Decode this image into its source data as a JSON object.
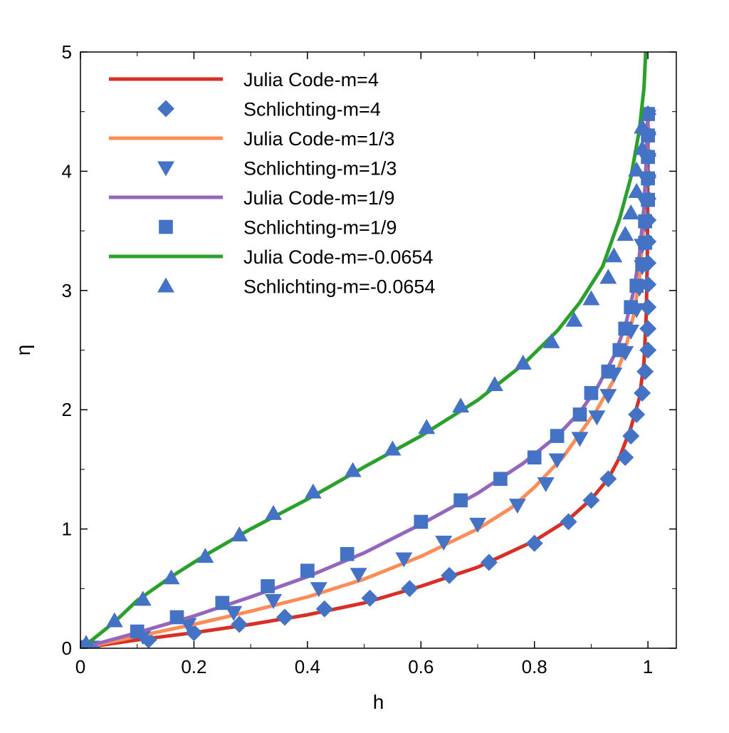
{
  "chart_data": {
    "type": "line",
    "title": "",
    "xlabel": "h",
    "ylabel": "η",
    "xlim": [
      0,
      1.05
    ],
    "ylim": [
      0,
      5
    ],
    "x_ticks": [
      0,
      0.2,
      0.4,
      0.6,
      0.8,
      1
    ],
    "x_tick_labels": [
      "0",
      "0.2",
      "0.4",
      "0.6",
      "0.8",
      "1"
    ],
    "y_ticks": [
      0,
      1,
      2,
      3,
      4,
      5
    ],
    "y_tick_labels": [
      "0",
      "1",
      "2",
      "3",
      "4",
      "5"
    ],
    "grid": false,
    "legend_position": "top-left",
    "series": [
      {
        "name": "Julia Code-m=4",
        "kind": "line",
        "color": "#d73027",
        "points": [
          [
            0,
            0
          ],
          [
            0.1,
            0.07
          ],
          [
            0.2,
            0.13
          ],
          [
            0.3,
            0.2
          ],
          [
            0.4,
            0.28
          ],
          [
            0.5,
            0.38
          ],
          [
            0.6,
            0.52
          ],
          [
            0.7,
            0.68
          ],
          [
            0.8,
            0.9
          ],
          [
            0.86,
            1.08
          ],
          [
            0.9,
            1.25
          ],
          [
            0.93,
            1.42
          ],
          [
            0.95,
            1.6
          ],
          [
            0.97,
            1.85
          ],
          [
            0.985,
            2.1
          ],
          [
            0.993,
            2.4
          ],
          [
            0.997,
            2.8
          ],
          [
            0.999,
            3.3
          ],
          [
            1.0,
            4.0
          ],
          [
            1.0,
            4.5
          ]
        ]
      },
      {
        "name": "Schlichting-m=4",
        "kind": "marker",
        "marker": "diamond",
        "color": "#4472c4",
        "points": [
          [
            0.02,
            0.01
          ],
          [
            0.12,
            0.07
          ],
          [
            0.2,
            0.13
          ],
          [
            0.28,
            0.2
          ],
          [
            0.36,
            0.26
          ],
          [
            0.43,
            0.33
          ],
          [
            0.51,
            0.42
          ],
          [
            0.58,
            0.5
          ],
          [
            0.65,
            0.61
          ],
          [
            0.72,
            0.72
          ],
          [
            0.8,
            0.88
          ],
          [
            0.86,
            1.06
          ],
          [
            0.9,
            1.24
          ],
          [
            0.93,
            1.42
          ],
          [
            0.96,
            1.6
          ],
          [
            0.97,
            1.78
          ],
          [
            0.98,
            1.96
          ],
          [
            0.99,
            2.14
          ],
          [
            0.995,
            2.32
          ],
          [
            1.0,
            2.5
          ],
          [
            1.0,
            2.68
          ],
          [
            1.0,
            2.86
          ],
          [
            1.0,
            3.05
          ],
          [
            1.0,
            3.23
          ],
          [
            1.0,
            3.41
          ],
          [
            1.0,
            3.59
          ],
          [
            1.0,
            3.77
          ],
          [
            1.0,
            3.95
          ],
          [
            1.0,
            4.13
          ],
          [
            1.0,
            4.31
          ],
          [
            1.0,
            4.48
          ]
        ]
      },
      {
        "name": "Julia Code-m=1/3",
        "kind": "line",
        "color": "#fc8d59",
        "points": [
          [
            0,
            0
          ],
          [
            0.1,
            0.1
          ],
          [
            0.2,
            0.2
          ],
          [
            0.3,
            0.31
          ],
          [
            0.4,
            0.43
          ],
          [
            0.5,
            0.58
          ],
          [
            0.6,
            0.77
          ],
          [
            0.7,
            1.0
          ],
          [
            0.76,
            1.18
          ],
          [
            0.8,
            1.35
          ],
          [
            0.85,
            1.6
          ],
          [
            0.88,
            1.8
          ],
          [
            0.91,
            2.0
          ],
          [
            0.94,
            2.25
          ],
          [
            0.96,
            2.5
          ],
          [
            0.975,
            2.8
          ],
          [
            0.985,
            3.1
          ],
          [
            0.992,
            3.5
          ],
          [
            0.997,
            4.0
          ],
          [
            1.0,
            4.5
          ]
        ]
      },
      {
        "name": "Schlichting-m=1/3",
        "kind": "marker",
        "marker": "triangle-down",
        "color": "#4472c4",
        "points": [
          [
            0.02,
            0.01
          ],
          [
            0.11,
            0.1
          ],
          [
            0.19,
            0.2
          ],
          [
            0.27,
            0.3
          ],
          [
            0.34,
            0.4
          ],
          [
            0.42,
            0.5
          ],
          [
            0.49,
            0.62
          ],
          [
            0.57,
            0.75
          ],
          [
            0.64,
            0.89
          ],
          [
            0.7,
            1.04
          ],
          [
            0.77,
            1.2
          ],
          [
            0.82,
            1.38
          ],
          [
            0.84,
            1.58
          ],
          [
            0.88,
            1.76
          ],
          [
            0.91,
            1.94
          ],
          [
            0.93,
            2.12
          ],
          [
            0.94,
            2.3
          ],
          [
            0.96,
            2.48
          ],
          [
            0.97,
            2.66
          ],
          [
            0.98,
            2.84
          ],
          [
            0.985,
            3.02
          ],
          [
            0.99,
            3.2
          ],
          [
            0.99,
            3.38
          ],
          [
            0.995,
            3.56
          ],
          [
            0.995,
            3.74
          ],
          [
            1.0,
            3.92
          ],
          [
            1.0,
            4.1
          ],
          [
            1.0,
            4.28
          ],
          [
            1.0,
            4.46
          ]
        ]
      },
      {
        "name": "Julia Code-m=1/9",
        "kind": "line",
        "color": "#9467bd",
        "points": [
          [
            0,
            0
          ],
          [
            0.1,
            0.13
          ],
          [
            0.2,
            0.27
          ],
          [
            0.3,
            0.43
          ],
          [
            0.4,
            0.6
          ],
          [
            0.5,
            0.8
          ],
          [
            0.6,
            1.04
          ],
          [
            0.7,
            1.3
          ],
          [
            0.78,
            1.55
          ],
          [
            0.84,
            1.78
          ],
          [
            0.88,
            1.98
          ],
          [
            0.91,
            2.18
          ],
          [
            0.94,
            2.45
          ],
          [
            0.96,
            2.7
          ],
          [
            0.975,
            3.0
          ],
          [
            0.985,
            3.3
          ],
          [
            0.993,
            3.7
          ],
          [
            0.997,
            4.1
          ],
          [
            1.0,
            4.5
          ]
        ]
      },
      {
        "name": "Schlichting-m=1/9",
        "kind": "marker",
        "marker": "square",
        "color": "#4472c4",
        "points": [
          [
            0.01,
            0.01
          ],
          [
            0.1,
            0.14
          ],
          [
            0.17,
            0.26
          ],
          [
            0.25,
            0.38
          ],
          [
            0.33,
            0.52
          ],
          [
            0.4,
            0.65
          ],
          [
            0.47,
            0.79
          ],
          [
            0.6,
            1.06
          ],
          [
            0.67,
            1.24
          ],
          [
            0.74,
            1.42
          ],
          [
            0.8,
            1.6
          ],
          [
            0.84,
            1.78
          ],
          [
            0.88,
            1.96
          ],
          [
            0.9,
            2.14
          ],
          [
            0.93,
            2.32
          ],
          [
            0.95,
            2.5
          ],
          [
            0.96,
            2.68
          ],
          [
            0.97,
            2.86
          ],
          [
            0.98,
            3.04
          ],
          [
            0.99,
            3.22
          ],
          [
            0.995,
            3.4
          ],
          [
            0.995,
            3.58
          ],
          [
            1.0,
            3.76
          ],
          [
            1.0,
            3.94
          ],
          [
            1.0,
            4.12
          ],
          [
            1.0,
            4.3
          ],
          [
            1.0,
            4.48
          ]
        ]
      },
      {
        "name": "Julia Code-m=-0.0654",
        "kind": "line",
        "color": "#2ca02c",
        "points": [
          [
            0.01,
            0.03
          ],
          [
            0.06,
            0.22
          ],
          [
            0.1,
            0.4
          ],
          [
            0.16,
            0.6
          ],
          [
            0.22,
            0.78
          ],
          [
            0.3,
            1.0
          ],
          [
            0.4,
            1.25
          ],
          [
            0.5,
            1.52
          ],
          [
            0.6,
            1.78
          ],
          [
            0.7,
            2.08
          ],
          [
            0.78,
            2.38
          ],
          [
            0.84,
            2.66
          ],
          [
            0.88,
            2.9
          ],
          [
            0.92,
            3.2
          ],
          [
            0.95,
            3.6
          ],
          [
            0.97,
            3.95
          ],
          [
            0.985,
            4.35
          ],
          [
            0.993,
            4.7
          ],
          [
            0.996,
            5.0
          ]
        ]
      },
      {
        "name": "Schlichting-m=-0.0654",
        "kind": "marker",
        "marker": "triangle-up",
        "color": "#4472c4",
        "points": [
          [
            0.01,
            0.04
          ],
          [
            0.06,
            0.23
          ],
          [
            0.11,
            0.41
          ],
          [
            0.16,
            0.59
          ],
          [
            0.22,
            0.77
          ],
          [
            0.28,
            0.95
          ],
          [
            0.34,
            1.13
          ],
          [
            0.41,
            1.31
          ],
          [
            0.48,
            1.49
          ],
          [
            0.55,
            1.67
          ],
          [
            0.61,
            1.85
          ],
          [
            0.67,
            2.03
          ],
          [
            0.73,
            2.21
          ],
          [
            0.78,
            2.39
          ],
          [
            0.83,
            2.57
          ],
          [
            0.87,
            2.75
          ],
          [
            0.9,
            2.93
          ],
          [
            0.93,
            3.11
          ],
          [
            0.94,
            3.29
          ],
          [
            0.96,
            3.47
          ],
          [
            0.97,
            3.65
          ],
          [
            0.98,
            3.83
          ],
          [
            0.98,
            4.01
          ],
          [
            0.99,
            4.19
          ],
          [
            0.99,
            4.37
          ]
        ]
      }
    ]
  }
}
